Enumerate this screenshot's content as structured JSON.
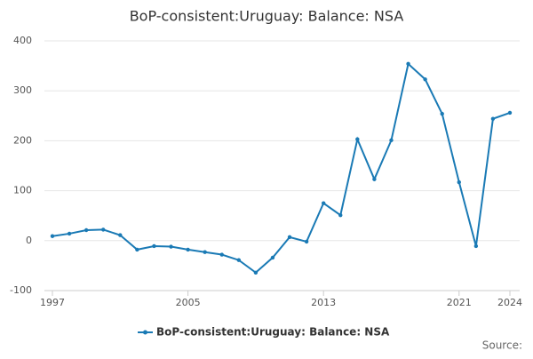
{
  "chart_data": {
    "type": "line",
    "title": "BoP-consistent:Uruguay: Balance: NSA",
    "x": [
      1997,
      1998,
      1999,
      2000,
      2001,
      2002,
      2003,
      2004,
      2005,
      2006,
      2007,
      2008,
      2009,
      2010,
      2011,
      2012,
      2013,
      2014,
      2015,
      2016,
      2017,
      2018,
      2019,
      2020,
      2021,
      2022,
      2023,
      2024
    ],
    "series": [
      {
        "name": "BoP-consistent:Uruguay: Balance: NSA",
        "color": "#1a7ab5",
        "values": [
          9,
          14,
          21,
          22,
          11,
          -18,
          -11,
          -12,
          -18,
          -23,
          -28,
          -39,
          -64,
          -34,
          7,
          -2,
          75,
          51,
          203,
          123,
          201,
          354,
          323,
          254,
          117,
          -11,
          244,
          256
        ]
      }
    ],
    "xlim": [
      1997,
      2024
    ],
    "xticks": [
      1997,
      2005,
      2013,
      2021,
      2024
    ],
    "ylim": [
      -100,
      400
    ],
    "yticks": [
      -100,
      0,
      100,
      200,
      300,
      400
    ],
    "grid": true,
    "legend": "bottom",
    "source": "Source:"
  }
}
